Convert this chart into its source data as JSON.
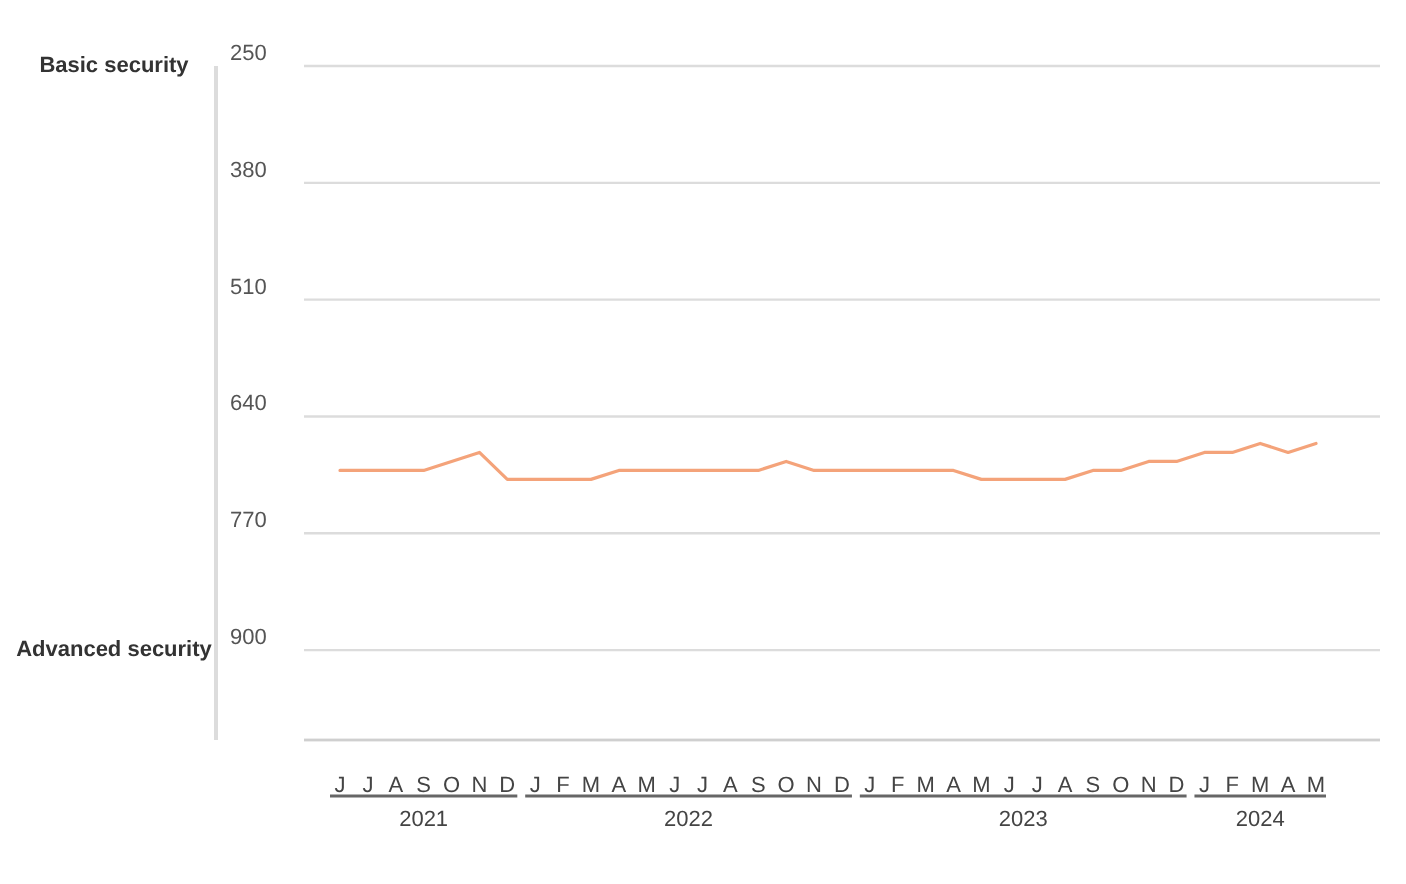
{
  "chart_data": {
    "type": "line",
    "categories": [
      "J",
      "J",
      "A",
      "S",
      "O",
      "N",
      "D",
      "J",
      "F",
      "M",
      "A",
      "M",
      "J",
      "J",
      "A",
      "S",
      "O",
      "N",
      "D",
      "J",
      "F",
      "M",
      "A",
      "M",
      "J",
      "J",
      "A",
      "S",
      "O",
      "N",
      "D",
      "J",
      "F",
      "M",
      "A",
      "M"
    ],
    "series": [
      {
        "color": "#f4a37a",
        "values": [
          700,
          700,
          700,
          700,
          690,
          680,
          710,
          710,
          710,
          710,
          700,
          700,
          700,
          700,
          700,
          700,
          690,
          700,
          700,
          700,
          700,
          700,
          700,
          710,
          710,
          710,
          710,
          700,
          700,
          690,
          690,
          680,
          680,
          670,
          680,
          670
        ]
      }
    ],
    "ylim": [
      1000,
      250
    ],
    "yticks": [
      250,
      380,
      510,
      640,
      770,
      900
    ],
    "grid": "y",
    "marker": "none",
    "line_style": "solid",
    "annotations": [
      "Basic security",
      "Advanced security",
      "2021",
      "2022",
      "2023",
      "2024"
    ]
  }
}
